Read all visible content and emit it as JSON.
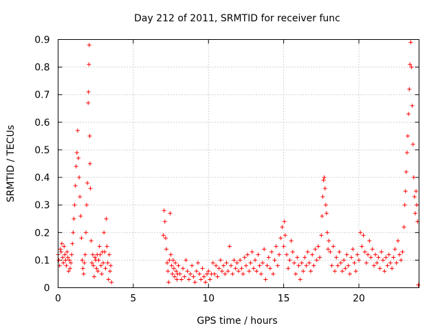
{
  "chart_data": {
    "type": "scatter",
    "title": "Day 212 of 2011, SRMTID for receiver func",
    "xlabel": "GPS time / hours",
    "ylabel": "SRMTID / TECUs",
    "xlim": [
      0,
      24
    ],
    "ylim": [
      0,
      0.9
    ],
    "xticks": [
      0,
      5,
      10,
      15,
      20
    ],
    "xtick_labels": [
      "0",
      "5",
      "10",
      "15",
      "20"
    ],
    "yticks": [
      0,
      0.1,
      0.2,
      0.3,
      0.4,
      0.5,
      0.6,
      0.7,
      0.8,
      0.9
    ],
    "ytick_labels": [
      "0",
      "0.1",
      "0.2",
      "0.3",
      "0.4",
      "0.5",
      "0.6",
      "0.7",
      "0.8",
      "0.9"
    ],
    "grid": true,
    "marker": "+",
    "color": "#ff0000",
    "series": [
      {
        "name": "SRMTID",
        "points": [
          [
            0.0,
            0.12
          ],
          [
            0.05,
            0.1
          ],
          [
            0.1,
            0.08
          ],
          [
            0.15,
            0.14
          ],
          [
            0.2,
            0.13
          ],
          [
            0.25,
            0.16
          ],
          [
            0.3,
            0.11
          ],
          [
            0.35,
            0.09
          ],
          [
            0.4,
            0.15
          ],
          [
            0.45,
            0.12
          ],
          [
            0.5,
            0.1
          ],
          [
            0.55,
            0.08
          ],
          [
            0.6,
            0.13
          ],
          [
            0.65,
            0.11
          ],
          [
            0.7,
            0.06
          ],
          [
            0.75,
            0.1
          ],
          [
            0.8,
            0.07
          ],
          [
            0.85,
            0.09
          ],
          [
            0.9,
            0.12
          ],
          [
            0.95,
            0.16
          ],
          [
            1.0,
            0.2
          ],
          [
            1.05,
            0.25
          ],
          [
            1.1,
            0.3
          ],
          [
            1.15,
            0.37
          ],
          [
            1.2,
            0.44
          ],
          [
            1.25,
            0.49
          ],
          [
            1.3,
            0.57
          ],
          [
            1.35,
            0.47
          ],
          [
            1.4,
            0.4
          ],
          [
            1.45,
            0.33
          ],
          [
            1.5,
            0.26
          ],
          [
            1.55,
            0.18
          ],
          [
            1.6,
            0.1
          ],
          [
            1.65,
            0.07
          ],
          [
            1.7,
            0.05
          ],
          [
            1.75,
            0.09
          ],
          [
            1.8,
            0.12
          ],
          [
            1.85,
            0.2
          ],
          [
            1.9,
            0.3
          ],
          [
            1.95,
            0.38
          ],
          [
            2.0,
            0.67
          ],
          [
            2.02,
            0.71
          ],
          [
            2.05,
            0.81
          ],
          [
            2.07,
            0.88
          ],
          [
            2.1,
            0.55
          ],
          [
            2.12,
            0.45
          ],
          [
            2.15,
            0.36
          ],
          [
            2.2,
            0.17
          ],
          [
            2.25,
            0.09
          ],
          [
            2.3,
            0.12
          ],
          [
            2.35,
            0.08
          ],
          [
            2.4,
            0.04
          ],
          [
            2.45,
            0.11
          ],
          [
            2.5,
            0.1
          ],
          [
            2.55,
            0.07
          ],
          [
            2.6,
            0.12
          ],
          [
            2.65,
            0.06
          ],
          [
            2.7,
            0.1
          ],
          [
            2.75,
            0.15
          ],
          [
            2.8,
            0.12
          ],
          [
            2.85,
            0.08
          ],
          [
            2.9,
            0.05
          ],
          [
            2.95,
            0.13
          ],
          [
            3.0,
            0.09
          ],
          [
            3.05,
            0.2
          ],
          [
            3.1,
            0.13
          ],
          [
            3.15,
            0.07
          ],
          [
            3.2,
            0.25
          ],
          [
            3.25,
            0.15
          ],
          [
            3.3,
            0.09
          ],
          [
            3.35,
            0.03
          ],
          [
            3.4,
            0.12
          ],
          [
            3.45,
            0.06
          ],
          [
            3.5,
            0.08
          ],
          [
            3.55,
            0.02
          ],
          [
            7.0,
            0.19
          ],
          [
            7.05,
            0.28
          ],
          [
            7.1,
            0.24
          ],
          [
            7.15,
            0.18
          ],
          [
            7.2,
            0.14
          ],
          [
            7.25,
            0.09
          ],
          [
            7.3,
            0.06
          ],
          [
            7.35,
            0.02
          ],
          [
            7.4,
            0.1
          ],
          [
            7.45,
            0.27
          ],
          [
            7.5,
            0.12
          ],
          [
            7.55,
            0.08
          ],
          [
            7.6,
            0.05
          ],
          [
            7.65,
            0.1
          ],
          [
            7.7,
            0.07
          ],
          [
            7.75,
            0.04
          ],
          [
            7.8,
            0.09
          ],
          [
            7.85,
            0.06
          ],
          [
            7.9,
            0.03
          ],
          [
            7.95,
            0.05
          ],
          [
            8.0,
            0.08
          ],
          [
            8.1,
            0.05
          ],
          [
            8.2,
            0.03
          ],
          [
            8.3,
            0.07
          ],
          [
            8.4,
            0.04
          ],
          [
            8.5,
            0.1
          ],
          [
            8.6,
            0.06
          ],
          [
            8.7,
            0.03
          ],
          [
            8.8,
            0.05
          ],
          [
            8.9,
            0.08
          ],
          [
            9.0,
            0.04
          ],
          [
            9.1,
            0.02
          ],
          [
            9.2,
            0.06
          ],
          [
            9.3,
            0.09
          ],
          [
            9.4,
            0.05
          ],
          [
            9.5,
            0.03
          ],
          [
            9.6,
            0.07
          ],
          [
            9.7,
            0.04
          ],
          [
            9.8,
            0.02
          ],
          [
            9.9,
            0.05
          ],
          [
            10.0,
            0.06
          ],
          [
            10.1,
            0.03
          ],
          [
            10.2,
            0.05
          ],
          [
            10.3,
            0.09
          ],
          [
            10.4,
            0.05
          ],
          [
            10.5,
            0.08
          ],
          [
            10.6,
            0.04
          ],
          [
            10.7,
            0.07
          ],
          [
            10.8,
            0.1
          ],
          [
            10.9,
            0.06
          ],
          [
            11.0,
            0.08
          ],
          [
            11.1,
            0.05
          ],
          [
            11.2,
            0.09
          ],
          [
            11.3,
            0.06
          ],
          [
            11.4,
            0.15
          ],
          [
            11.5,
            0.08
          ],
          [
            11.6,
            0.05
          ],
          [
            11.7,
            0.1
          ],
          [
            11.8,
            0.07
          ],
          [
            11.9,
            0.09
          ],
          [
            12.0,
            0.06
          ],
          [
            12.1,
            0.1
          ],
          [
            12.2,
            0.07
          ],
          [
            12.3,
            0.05
          ],
          [
            12.4,
            0.11
          ],
          [
            12.5,
            0.08
          ],
          [
            12.6,
            0.12
          ],
          [
            12.7,
            0.06
          ],
          [
            12.8,
            0.09
          ],
          [
            12.9,
            0.13
          ],
          [
            13.0,
            0.07
          ],
          [
            13.1,
            0.1
          ],
          [
            13.2,
            0.06
          ],
          [
            13.3,
            0.12
          ],
          [
            13.4,
            0.08
          ],
          [
            13.5,
            0.05
          ],
          [
            13.6,
            0.09
          ],
          [
            13.7,
            0.14
          ],
          [
            13.8,
            0.03
          ],
          [
            13.9,
            0.08
          ],
          [
            14.0,
            0.11
          ],
          [
            14.1,
            0.07
          ],
          [
            14.2,
            0.13
          ],
          [
            14.3,
            0.05
          ],
          [
            14.4,
            0.1
          ],
          [
            14.5,
            0.15
          ],
          [
            14.6,
            0.08
          ],
          [
            14.7,
            0.12
          ],
          [
            14.8,
            0.18
          ],
          [
            14.9,
            0.22
          ],
          [
            15.0,
            0.15
          ],
          [
            15.05,
            0.24
          ],
          [
            15.1,
            0.19
          ],
          [
            15.2,
            0.12
          ],
          [
            15.3,
            0.07
          ],
          [
            15.4,
            0.1
          ],
          [
            15.5,
            0.17
          ],
          [
            15.6,
            0.13
          ],
          [
            15.7,
            0.09
          ],
          [
            15.8,
            0.05
          ],
          [
            15.9,
            0.11
          ],
          [
            16.0,
            0.08
          ],
          [
            16.1,
            0.03
          ],
          [
            16.2,
            0.09
          ],
          [
            16.3,
            0.06
          ],
          [
            16.4,
            0.11
          ],
          [
            16.5,
            0.08
          ],
          [
            16.6,
            0.13
          ],
          [
            16.7,
            0.09
          ],
          [
            16.8,
            0.06
          ],
          [
            16.9,
            0.12
          ],
          [
            17.0,
            0.08
          ],
          [
            17.1,
            0.14
          ],
          [
            17.2,
            0.1
          ],
          [
            17.3,
            0.15
          ],
          [
            17.4,
            0.11
          ],
          [
            17.5,
            0.19
          ],
          [
            17.55,
            0.26
          ],
          [
            17.6,
            0.33
          ],
          [
            17.65,
            0.39
          ],
          [
            17.7,
            0.4
          ],
          [
            17.75,
            0.36
          ],
          [
            17.8,
            0.3
          ],
          [
            17.85,
            0.27
          ],
          [
            17.9,
            0.2
          ],
          [
            17.95,
            0.14
          ],
          [
            18.0,
            0.17
          ],
          [
            18.1,
            0.13
          ],
          [
            18.2,
            0.08
          ],
          [
            18.3,
            0.15
          ],
          [
            18.4,
            0.06
          ],
          [
            18.5,
            0.11
          ],
          [
            18.6,
            0.08
          ],
          [
            18.7,
            0.13
          ],
          [
            18.8,
            0.09
          ],
          [
            18.9,
            0.06
          ],
          [
            19.0,
            0.1
          ],
          [
            19.1,
            0.07
          ],
          [
            19.2,
            0.12
          ],
          [
            19.3,
            0.08
          ],
          [
            19.4,
            0.05
          ],
          [
            19.5,
            0.11
          ],
          [
            19.6,
            0.14
          ],
          [
            19.7,
            0.09
          ],
          [
            19.8,
            0.06
          ],
          [
            19.9,
            0.12
          ],
          [
            20.0,
            0.1
          ],
          [
            20.1,
            0.2
          ],
          [
            20.2,
            0.15
          ],
          [
            20.3,
            0.19
          ],
          [
            20.4,
            0.13
          ],
          [
            20.5,
            0.09
          ],
          [
            20.6,
            0.12
          ],
          [
            20.7,
            0.17
          ],
          [
            20.8,
            0.11
          ],
          [
            20.9,
            0.14
          ],
          [
            21.0,
            0.08
          ],
          [
            21.1,
            0.12
          ],
          [
            21.2,
            0.09
          ],
          [
            21.3,
            0.11
          ],
          [
            21.4,
            0.07
          ],
          [
            21.5,
            0.13
          ],
          [
            21.6,
            0.1
          ],
          [
            21.7,
            0.06
          ],
          [
            21.8,
            0.11
          ],
          [
            21.9,
            0.08
          ],
          [
            22.0,
            0.12
          ],
          [
            22.1,
            0.09
          ],
          [
            22.2,
            0.07
          ],
          [
            22.3,
            0.11
          ],
          [
            22.4,
            0.14
          ],
          [
            22.5,
            0.09
          ],
          [
            22.6,
            0.17
          ],
          [
            22.7,
            0.12
          ],
          [
            22.8,
            0.1
          ],
          [
            22.9,
            0.13
          ],
          [
            23.0,
            0.22
          ],
          [
            23.05,
            0.3
          ],
          [
            23.1,
            0.35
          ],
          [
            23.15,
            0.42
          ],
          [
            23.2,
            0.49
          ],
          [
            23.25,
            0.55
          ],
          [
            23.3,
            0.63
          ],
          [
            23.35,
            0.72
          ],
          [
            23.4,
            0.81
          ],
          [
            23.45,
            0.89
          ],
          [
            23.5,
            0.8
          ],
          [
            23.55,
            0.66
          ],
          [
            23.6,
            0.52
          ],
          [
            23.65,
            0.4
          ],
          [
            23.7,
            0.33
          ],
          [
            23.75,
            0.27
          ],
          [
            23.8,
            0.35
          ],
          [
            23.85,
            0.3
          ],
          [
            23.9,
            0.24
          ],
          [
            23.95,
            0.01
          ]
        ]
      }
    ]
  }
}
